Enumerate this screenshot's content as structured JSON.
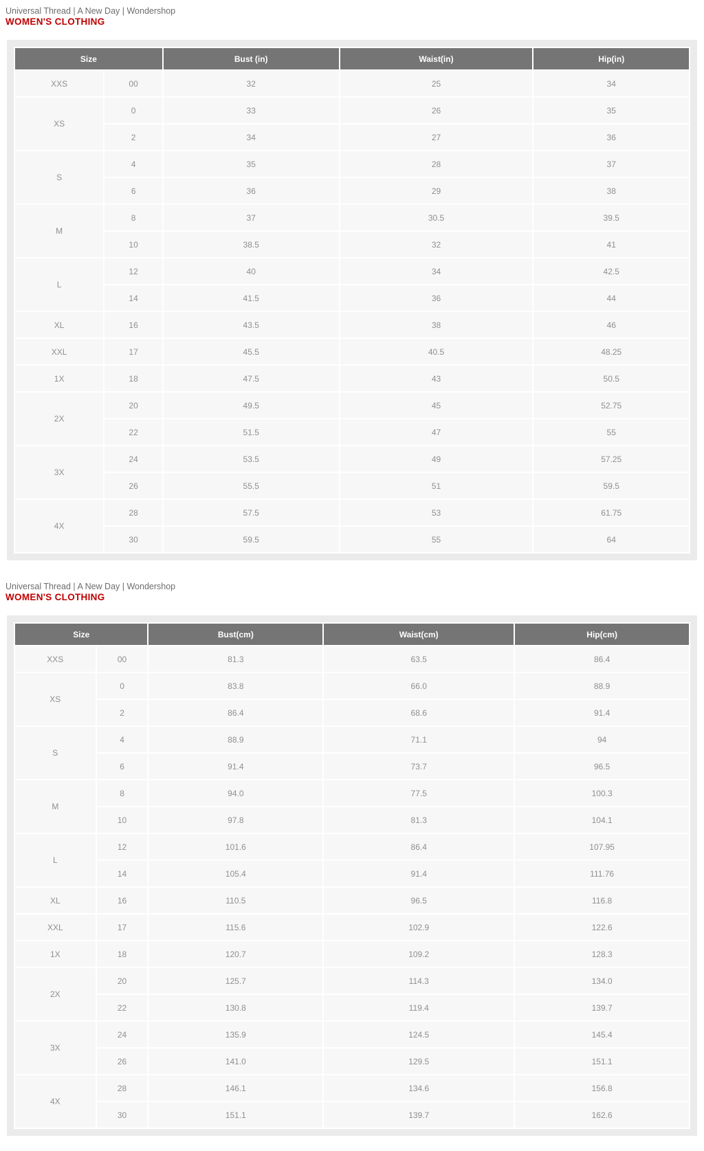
{
  "colors": {
    "container_bg": "#ebebeb",
    "header_bg": "#757575",
    "header_text": "#ffffff",
    "cell_bg": "#f7f7f7",
    "cell_text": "#8f8f8f",
    "brands_text": "#6d6d6d",
    "category_text": "#c00000"
  },
  "sections": [
    {
      "unit": "in",
      "brands": "Universal Thread | A New Day | Wondershop",
      "category": "WOMEN'S CLOTHING",
      "headers": [
        "Size",
        "Bust (in)",
        "Waist(in)",
        "Hip(in)"
      ],
      "groups": [
        {
          "size": "XXS",
          "rows": [
            [
              "00",
              "32",
              "25",
              "34"
            ]
          ]
        },
        {
          "size": "XS",
          "rows": [
            [
              "0",
              "33",
              "26",
              "35"
            ],
            [
              "2",
              "34",
              "27",
              "36"
            ]
          ]
        },
        {
          "size": "S",
          "rows": [
            [
              "4",
              "35",
              "28",
              "37"
            ],
            [
              "6",
              "36",
              "29",
              "38"
            ]
          ]
        },
        {
          "size": "M",
          "rows": [
            [
              "8",
              "37",
              "30.5",
              "39.5"
            ],
            [
              "10",
              "38.5",
              "32",
              "41"
            ]
          ]
        },
        {
          "size": "L",
          "rows": [
            [
              "12",
              "40",
              "34",
              "42.5"
            ],
            [
              "14",
              "41.5",
              "36",
              "44"
            ]
          ]
        },
        {
          "size": "XL",
          "rows": [
            [
              "16",
              "43.5",
              "38",
              "46"
            ]
          ]
        },
        {
          "size": "XXL",
          "rows": [
            [
              "17",
              "45.5",
              "40.5",
              "48.25"
            ]
          ]
        },
        {
          "size": "1X",
          "rows": [
            [
              "18",
              "47.5",
              "43",
              "50.5"
            ]
          ]
        },
        {
          "size": "2X",
          "rows": [
            [
              "20",
              "49.5",
              "45",
              "52.75"
            ],
            [
              "22",
              "51.5",
              "47",
              "55"
            ]
          ]
        },
        {
          "size": "3X",
          "rows": [
            [
              "24",
              "53.5",
              "49",
              "57.25"
            ],
            [
              "26",
              "55.5",
              "51",
              "59.5"
            ]
          ]
        },
        {
          "size": "4X",
          "rows": [
            [
              "28",
              "57.5",
              "53",
              "61.75"
            ],
            [
              "30",
              "59.5",
              "55",
              "64"
            ]
          ]
        }
      ]
    },
    {
      "unit": "cm",
      "brands": "Universal Thread | A New Day | Wondershop",
      "category": "WOMEN'S CLOTHING",
      "headers": [
        "Size",
        "Bust(cm)",
        "Waist(cm)",
        "Hip(cm)"
      ],
      "groups": [
        {
          "size": "XXS",
          "rows": [
            [
              "00",
              "81.3",
              "63.5",
              "86.4"
            ]
          ]
        },
        {
          "size": "XS",
          "rows": [
            [
              "0",
              "83.8",
              "66.0",
              "88.9"
            ],
            [
              "2",
              "86.4",
              "68.6",
              "91.4"
            ]
          ]
        },
        {
          "size": "S",
          "rows": [
            [
              "4",
              "88.9",
              "71.1",
              "94"
            ],
            [
              "6",
              "91.4",
              "73.7",
              "96.5"
            ]
          ]
        },
        {
          "size": "M",
          "rows": [
            [
              "8",
              "94.0",
              "77.5",
              "100.3"
            ],
            [
              "10",
              "97.8",
              "81.3",
              "104.1"
            ]
          ]
        },
        {
          "size": "L",
          "rows": [
            [
              "12",
              "101.6",
              "86.4",
              "107.95"
            ],
            [
              "14",
              "105.4",
              "91.4",
              "111.76"
            ]
          ]
        },
        {
          "size": "XL",
          "rows": [
            [
              "16",
              "110.5",
              "96.5",
              "116.8"
            ]
          ]
        },
        {
          "size": "XXL",
          "rows": [
            [
              "17",
              "115.6",
              "102.9",
              "122.6"
            ]
          ]
        },
        {
          "size": "1X",
          "rows": [
            [
              "18",
              "120.7",
              "109.2",
              "128.3"
            ]
          ]
        },
        {
          "size": "2X",
          "rows": [
            [
              "20",
              "125.7",
              "114.3",
              "134.0"
            ],
            [
              "22",
              "130.8",
              "119.4",
              "139.7"
            ]
          ]
        },
        {
          "size": "3X",
          "rows": [
            [
              "24",
              "135.9",
              "124.5",
              "145.4"
            ],
            [
              "26",
              "141.0",
              "129.5",
              "151.1"
            ]
          ]
        },
        {
          "size": "4X",
          "rows": [
            [
              "28",
              "146.1",
              "134.6",
              "156.8"
            ],
            [
              "30",
              "151.1",
              "139.7",
              "162.6"
            ]
          ]
        }
      ]
    }
  ]
}
